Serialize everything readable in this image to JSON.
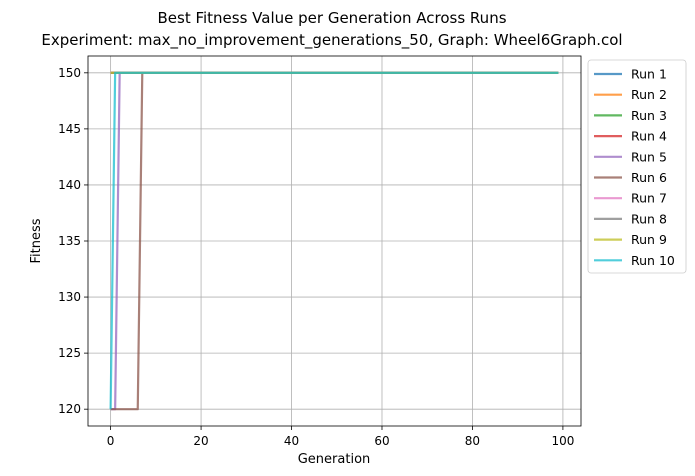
{
  "chart_data": {
    "type": "line",
    "title": "Best Fitness Value per Generation Across Runs",
    "subtitle": "Experiment: max_no_improvement_generations_50, Graph: Wheel6Graph.col",
    "xlabel": "Generation",
    "ylabel": "Fitness",
    "xlim": [
      -5,
      104
    ],
    "ylim": [
      118.5,
      151.5
    ],
    "xticks": [
      0,
      20,
      40,
      60,
      80,
      100
    ],
    "yticks": [
      120,
      125,
      130,
      135,
      140,
      145,
      150
    ],
    "grid": true,
    "legend_position": "outside-top-right",
    "series": [
      {
        "name": "Run 1",
        "color": "#1f77b4",
        "points": [
          [
            0,
            150
          ],
          [
            99,
            150
          ]
        ]
      },
      {
        "name": "Run 2",
        "color": "#ff7f0e",
        "points": [
          [
            0,
            150
          ],
          [
            99,
            150
          ]
        ]
      },
      {
        "name": "Run 3",
        "color": "#2ca02c",
        "points": [
          [
            0,
            150
          ],
          [
            99,
            150
          ]
        ]
      },
      {
        "name": "Run 4",
        "color": "#d62728",
        "points": [
          [
            0,
            150
          ],
          [
            99,
            150
          ]
        ]
      },
      {
        "name": "Run 5",
        "color": "#9467bd",
        "points": [
          [
            0,
            120
          ],
          [
            1,
            120
          ],
          [
            2,
            150
          ],
          [
            99,
            150
          ]
        ]
      },
      {
        "name": "Run 6",
        "color": "#8c564b",
        "points": [
          [
            0,
            120
          ],
          [
            6,
            120
          ],
          [
            7,
            150
          ],
          [
            99,
            150
          ]
        ]
      },
      {
        "name": "Run 7",
        "color": "#e377c2",
        "points": [
          [
            0,
            150
          ],
          [
            99,
            150
          ]
        ]
      },
      {
        "name": "Run 8",
        "color": "#7f7f7f",
        "points": [
          [
            0,
            150
          ],
          [
            99,
            150
          ]
        ]
      },
      {
        "name": "Run 9",
        "color": "#bcbd22",
        "points": [
          [
            0,
            150
          ],
          [
            99,
            150
          ]
        ]
      },
      {
        "name": "Run 10",
        "color": "#17becf",
        "points": [
          [
            0,
            120
          ],
          [
            1,
            150
          ],
          [
            99,
            150
          ]
        ]
      }
    ]
  }
}
